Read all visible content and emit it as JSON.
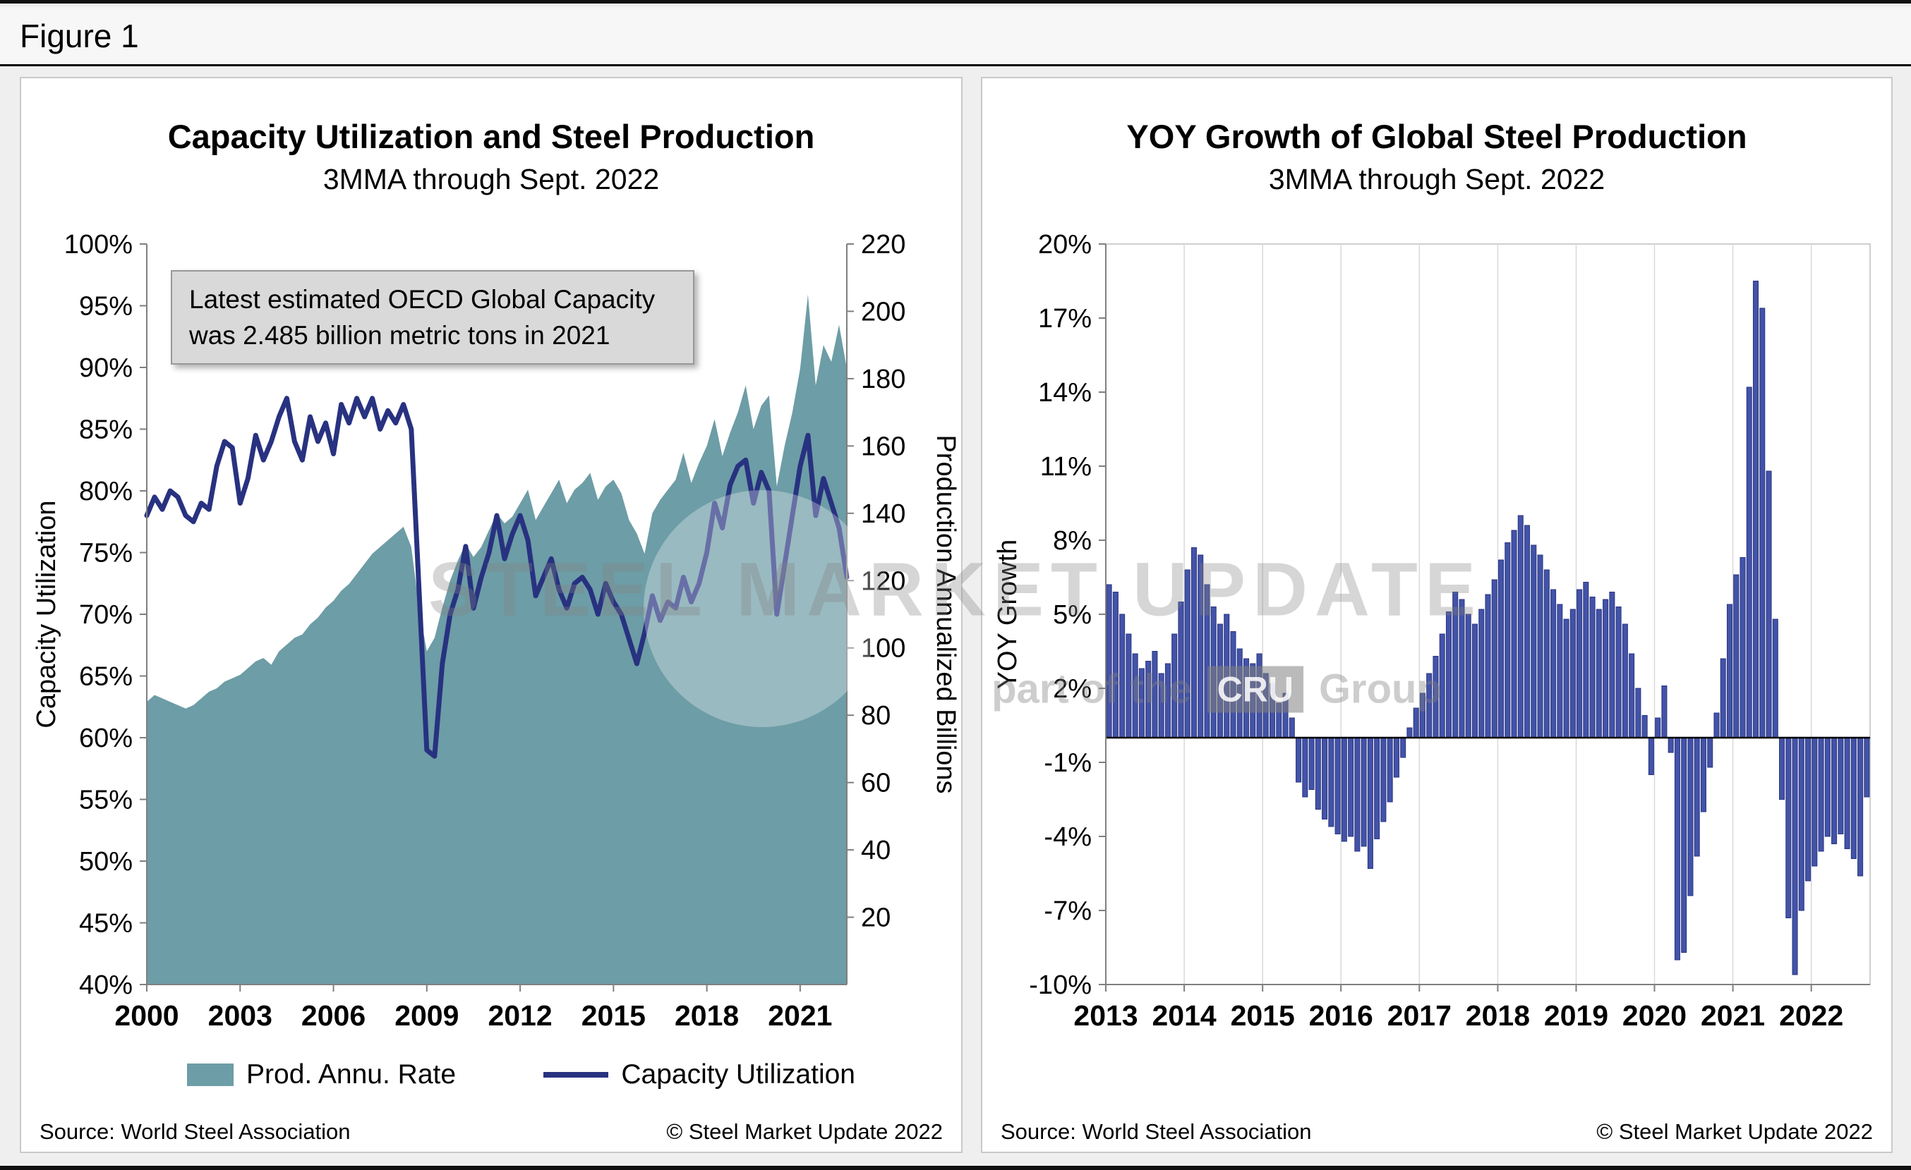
{
  "figure_label": "Figure 1",
  "watermark": {
    "line1": "STEEL MARKET UPDATE",
    "line2_prefix": "part of the",
    "line2_box": "CRU",
    "line2_suffix": "Group"
  },
  "chart_data": [
    {
      "type": "area",
      "title": "Capacity Utilization and Steel Production",
      "subtitle": "3MMA through Sept. 2022",
      "source": "Source: World Steel Association",
      "copyright": "© Steel Market Update 2022",
      "annotation": [
        "Latest estimated OECD Global Capacity",
        "was 2.485 billion metric tons in 2021"
      ],
      "x_start": 2000,
      "x_step": 0.25,
      "x_ticks": [
        2000,
        2003,
        2006,
        2009,
        2012,
        2015,
        2018,
        2021
      ],
      "y_left": {
        "label": "Capacity Utilization",
        "min": 40,
        "max": 100,
        "tick_step": 5,
        "tick_format": "percent"
      },
      "y_right": {
        "label": "Production Annualized Billions",
        "min": 0,
        "max": 220,
        "ticks": [
          220,
          200,
          180,
          160,
          140,
          120,
          100,
          80,
          60,
          40,
          20
        ]
      },
      "grid": false,
      "legend_position": "bottom",
      "series": [
        {
          "name": "Prod. Annu. Rate",
          "type": "area",
          "axis": "right",
          "color": "#6D9DA6",
          "values": [
            84,
            86,
            85,
            84,
            83,
            82,
            83,
            85,
            87,
            88,
            90,
            91,
            92,
            94,
            96,
            97,
            95,
            99,
            101,
            103,
            104,
            107,
            109,
            112,
            114,
            117,
            119,
            122,
            125,
            128,
            130,
            132,
            134,
            136,
            130,
            112,
            99,
            103,
            112,
            120,
            126,
            131,
            127,
            130,
            135,
            140,
            137,
            139,
            143,
            147,
            138,
            142,
            146,
            150,
            143,
            147,
            149,
            152,
            144,
            148,
            150,
            146,
            138,
            134,
            128,
            140,
            144,
            147,
            150,
            158,
            149,
            155,
            160,
            168,
            157,
            164,
            170,
            178,
            165,
            172,
            175,
            148,
            160,
            170,
            183,
            205,
            178,
            190,
            185,
            196,
            183
          ]
        },
        {
          "name": "Capacity Utilization",
          "type": "line",
          "axis": "left",
          "color": "#283280",
          "values": [
            78,
            79.5,
            78.5,
            80,
            79.5,
            78,
            77.5,
            79,
            78.5,
            82,
            84,
            83.5,
            79,
            81,
            84.5,
            82.5,
            84,
            86,
            87.5,
            84,
            82.5,
            86,
            84,
            85.5,
            83,
            87,
            85.5,
            87.5,
            86,
            87.5,
            85,
            86.5,
            85.5,
            87,
            85,
            72,
            59,
            58.5,
            66,
            70,
            72,
            75.5,
            70.5,
            73,
            75,
            78,
            74.5,
            76.5,
            78,
            76,
            71.5,
            73,
            74.5,
            72,
            70.5,
            72.5,
            73,
            72,
            70,
            72.5,
            71,
            70,
            68,
            66,
            68.5,
            71.5,
            69.5,
            71,
            70.5,
            73,
            71,
            72.5,
            75,
            79,
            77,
            80.5,
            82,
            82.5,
            79,
            81.5,
            80,
            70,
            74,
            78,
            82,
            84.5,
            78,
            81,
            79,
            77,
            73
          ]
        }
      ]
    },
    {
      "type": "bar",
      "title": "YOY Growth of Global Steel Production",
      "subtitle": "3MMA through Sept. 2022",
      "source": "Source: World Steel Association",
      "copyright": "© Steel Market Update 2022",
      "x_start_year": 2013,
      "x_months_per_year": 12,
      "x_ticks": [
        2013,
        2014,
        2015,
        2016,
        2017,
        2018,
        2019,
        2020,
        2021,
        2022
      ],
      "y": {
        "label": "YOY Growth",
        "min": -10,
        "max": 20,
        "tick_step": 3,
        "tick_format": "percent"
      },
      "grid": "vertical",
      "bar_color": "#4353A8",
      "bar_border_color": "#2A3580",
      "values": [
        6.2,
        5.9,
        5.0,
        4.2,
        3.4,
        2.8,
        3.1,
        3.5,
        2.6,
        3.0,
        4.2,
        5.5,
        6.8,
        7.7,
        7.4,
        6.2,
        5.3,
        4.6,
        5.0,
        4.3,
        3.6,
        3.2,
        3.0,
        3.4,
        2.6,
        2.2,
        1.4,
        1.8,
        0.8,
        -1.8,
        -2.4,
        -2.1,
        -2.9,
        -3.3,
        -3.6,
        -3.9,
        -4.2,
        -4.0,
        -4.6,
        -4.4,
        -5.3,
        -4.1,
        -3.4,
        -2.6,
        -1.6,
        -0.8,
        0.4,
        1.2,
        1.8,
        2.6,
        3.3,
        4.2,
        5.1,
        5.9,
        5.6,
        5.0,
        4.6,
        5.2,
        5.8,
        6.4,
        7.2,
        7.9,
        8.4,
        9.0,
        8.6,
        7.8,
        7.4,
        6.8,
        6.0,
        5.4,
        4.8,
        5.2,
        6.0,
        6.3,
        5.7,
        5.2,
        5.6,
        5.9,
        5.3,
        4.6,
        3.4,
        2.0,
        0.9,
        -1.5,
        0.8,
        2.1,
        -0.6,
        -9.0,
        -8.7,
        -6.4,
        -4.8,
        -3.0,
        -1.2,
        1.0,
        3.2,
        5.4,
        6.6,
        7.3,
        14.2,
        18.5,
        17.4,
        10.8,
        4.8,
        -2.5,
        -7.3,
        -9.6,
        -7.0,
        -5.8,
        -5.2,
        -4.6,
        -4.0,
        -4.3,
        -3.9,
        -4.5,
        -4.9,
        -5.6,
        -2.4
      ]
    }
  ]
}
